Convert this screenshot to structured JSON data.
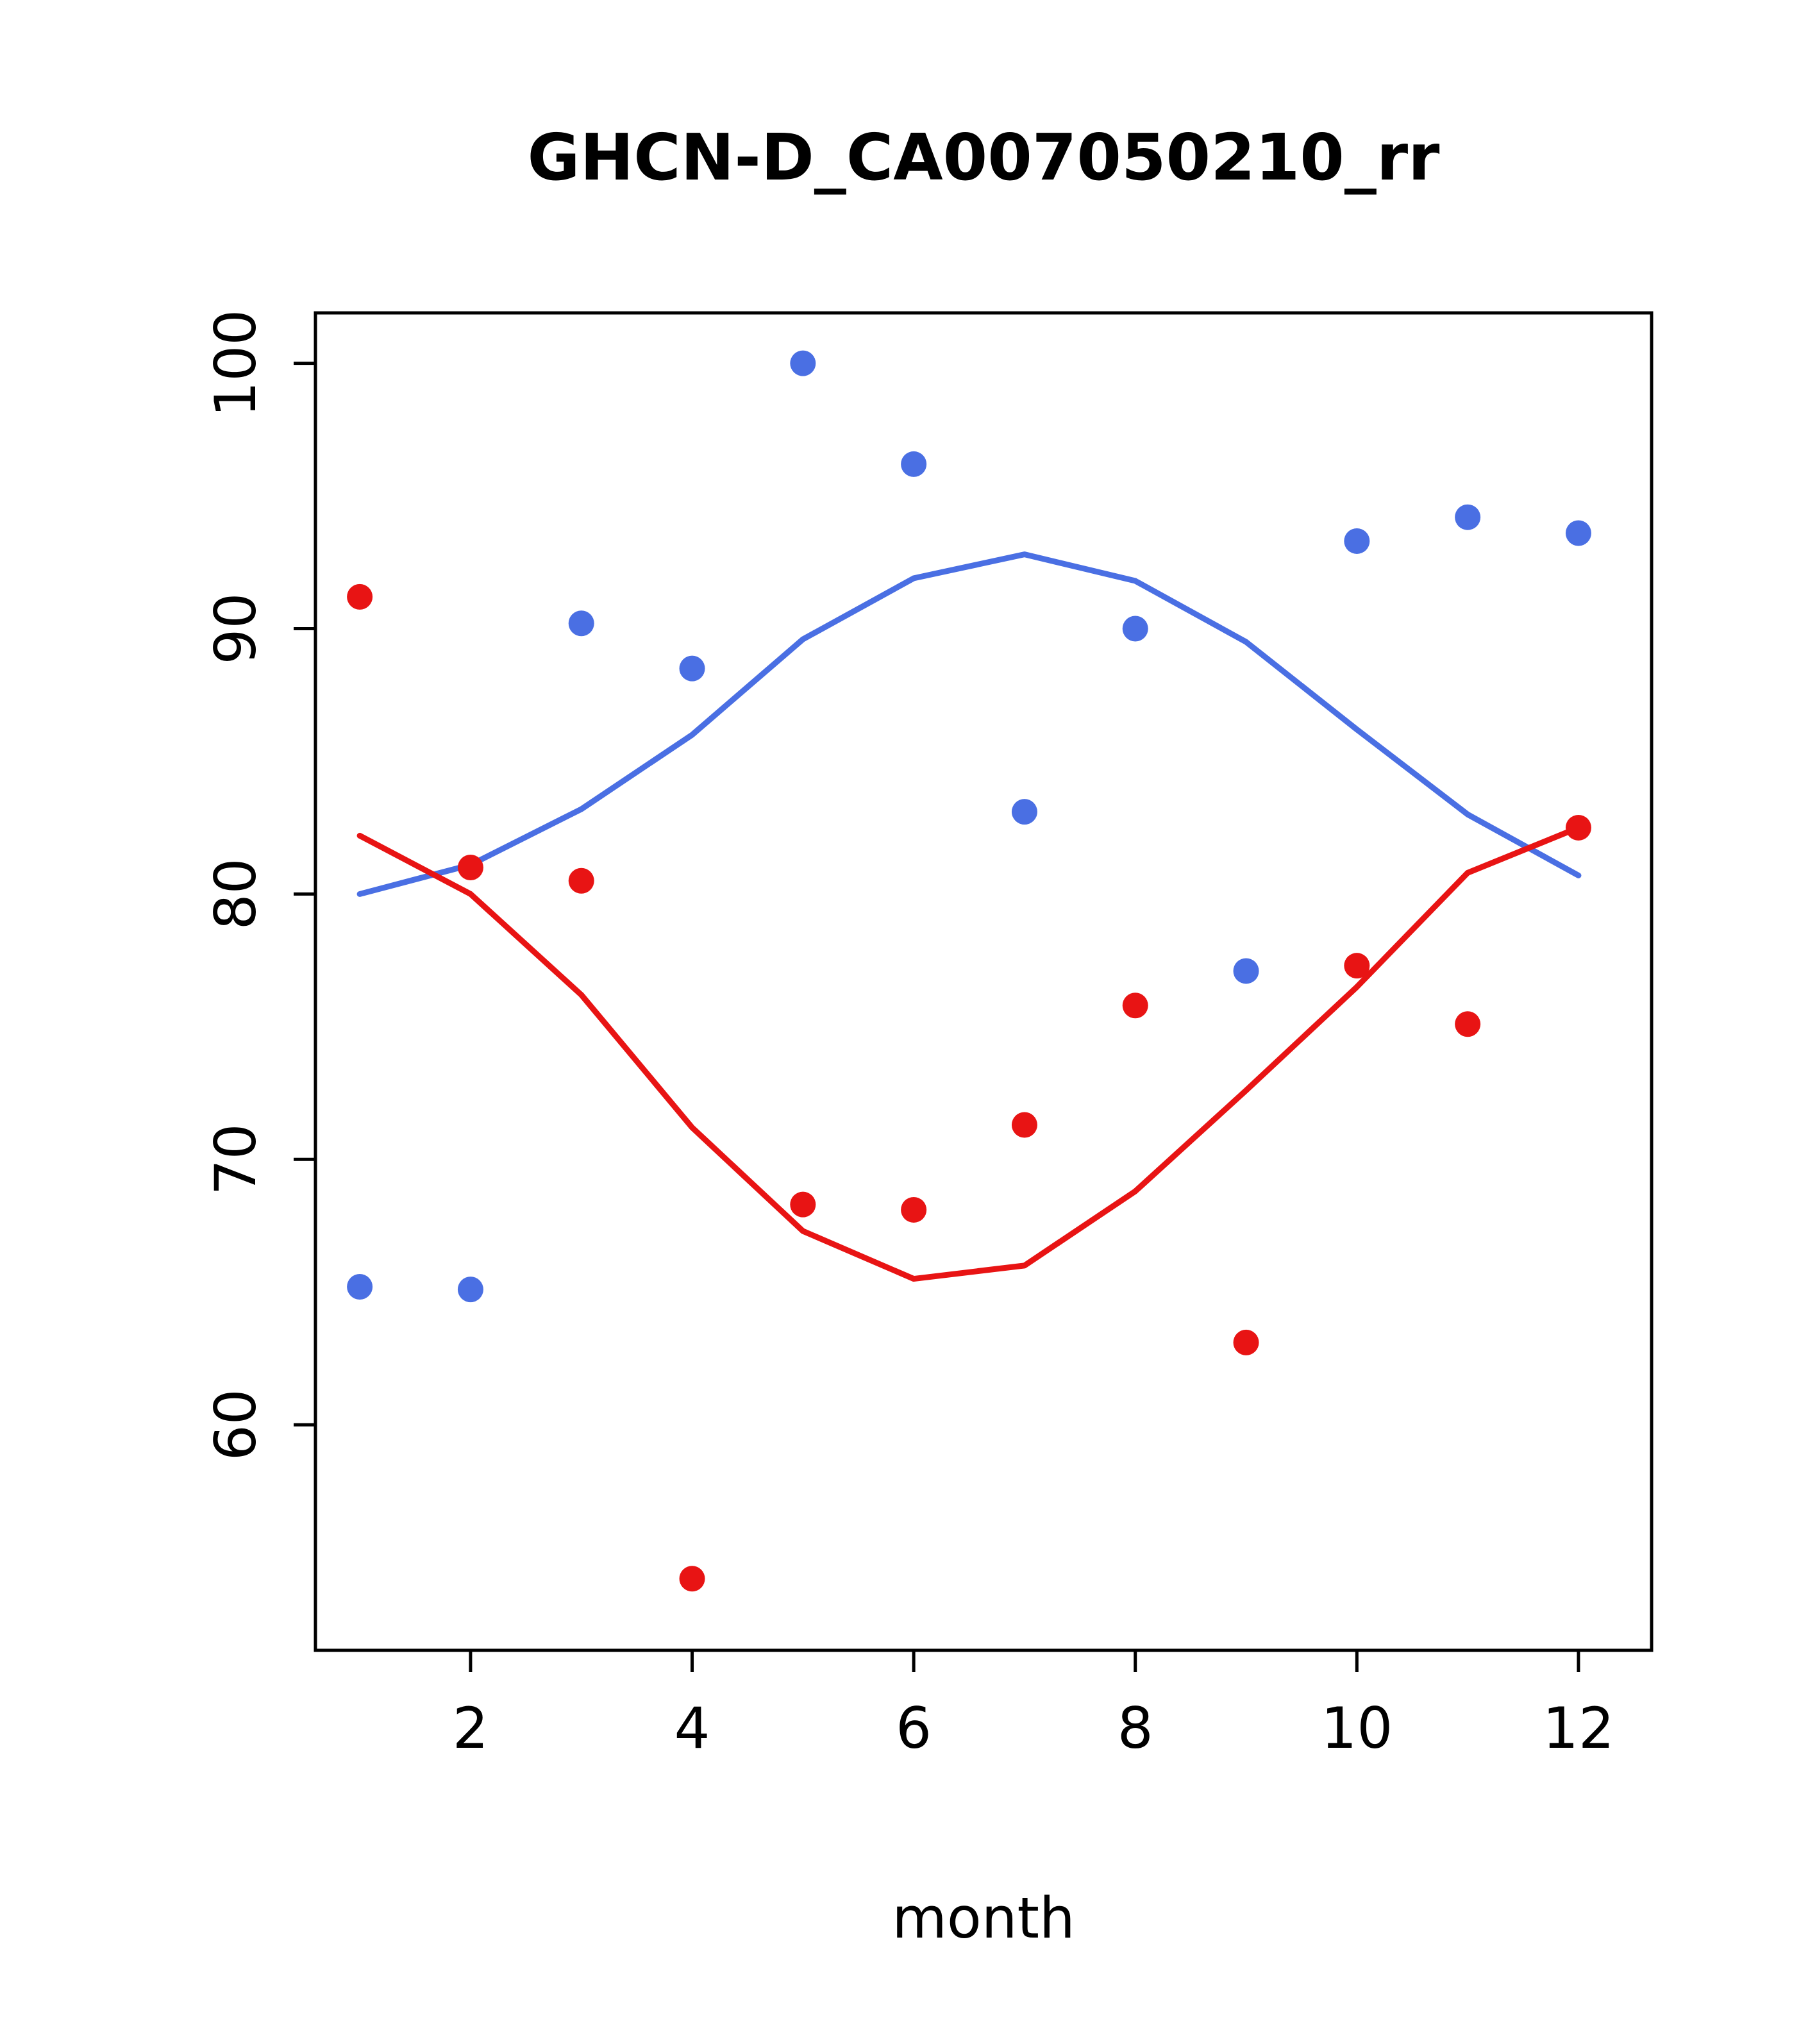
{
  "chart_data": {
    "type": "scatter",
    "title": "GHCN-D_CA007050210_rr",
    "xlabel": "month",
    "ylabel": "",
    "x_ticks": [
      2,
      4,
      6,
      8,
      10,
      12
    ],
    "y_ticks": [
      60,
      70,
      80,
      90,
      100
    ],
    "xlim": [
      0.6,
      12.66
    ],
    "ylim": [
      51.5,
      101.9
    ],
    "x": [
      1,
      2,
      3,
      4,
      5,
      6,
      7,
      8,
      9,
      10,
      11,
      12
    ],
    "colors": {
      "blue": "#4a6fe3",
      "red": "#e81414",
      "axis": "#000000",
      "background": "#ffffff"
    },
    "series": [
      {
        "name": "blue-points",
        "kind": "points",
        "color_key": "blue",
        "values": [
          65.2,
          65.1,
          90.2,
          88.5,
          100.0,
          96.2,
          83.1,
          90.0,
          77.1,
          93.3,
          94.2,
          93.6
        ]
      },
      {
        "name": "red-points",
        "kind": "points",
        "color_key": "red",
        "values": [
          91.2,
          81.0,
          80.5,
          54.2,
          68.3,
          68.1,
          71.3,
          75.8,
          63.1,
          77.3,
          75.1,
          82.5
        ]
      },
      {
        "name": "blue-smooth-line",
        "kind": "line",
        "color_key": "blue",
        "values": [
          80.0,
          81.1,
          83.2,
          86.0,
          89.6,
          91.9,
          92.8,
          91.8,
          89.5,
          86.2,
          83.0,
          80.7
        ]
      },
      {
        "name": "red-smooth-line",
        "kind": "line",
        "color_key": "red",
        "values": [
          82.2,
          80.0,
          76.2,
          71.2,
          67.3,
          65.5,
          66.0,
          68.8,
          72.6,
          76.5,
          80.8,
          82.5
        ]
      }
    ]
  }
}
